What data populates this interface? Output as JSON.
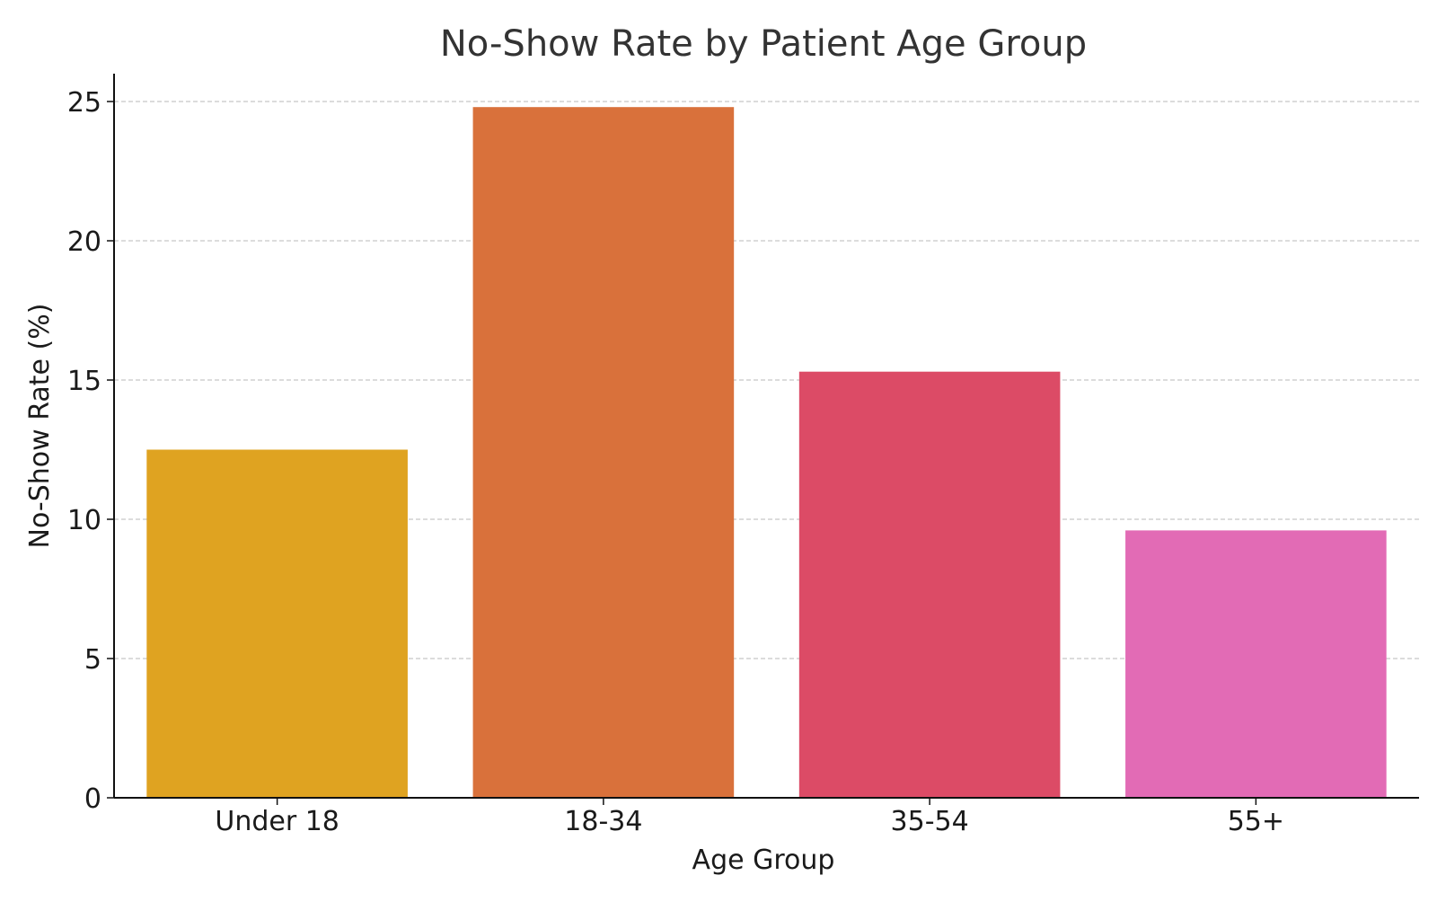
{
  "chart_data": {
    "type": "bar",
    "title": "No-Show Rate by Patient Age Group",
    "xlabel": "Age Group",
    "ylabel": "No-Show Rate (%)",
    "categories": [
      "Under 18",
      "18-34",
      "35-54",
      "55+"
    ],
    "values": [
      12.5,
      24.8,
      15.3,
      9.6
    ],
    "colors": [
      "#DFA321",
      "#D9713B",
      "#DC4B66",
      "#E26BB5"
    ],
    "ylim": [
      0,
      26
    ],
    "yticks": [
      0,
      5,
      10,
      15,
      20,
      25
    ],
    "grid": true,
    "legend": "none"
  }
}
